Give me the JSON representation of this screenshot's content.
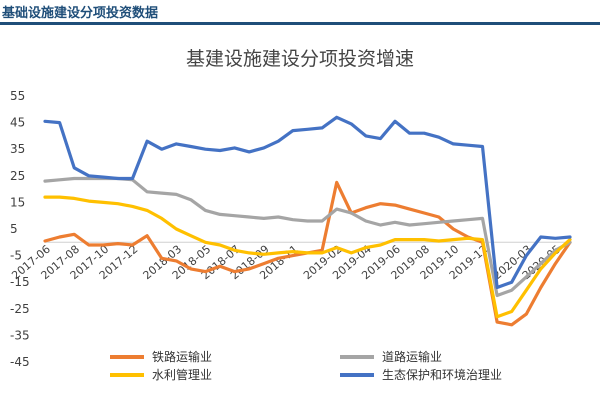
{
  "header": {
    "title": "基础设施建设分项投资数据"
  },
  "colors": {
    "header": "#1f4e79",
    "series": [
      "#ed7d31",
      "#a5a5a5",
      "#ffc000",
      "#4472c4"
    ]
  },
  "chart_data": {
    "type": "line",
    "title": "基建设施建设分项投资增速",
    "xlabel": "",
    "ylabel": "",
    "ylim": [
      -45,
      55
    ],
    "yticks": [
      55,
      45,
      35,
      25,
      15,
      5,
      -5,
      -15,
      -25,
      -35,
      -45
    ],
    "grid": false,
    "legend_position": "bottom",
    "x": [
      "2017-06",
      "2017-07",
      "2017-08",
      "2017-09",
      "2017-10",
      "2017-11",
      "2017-12",
      "2018-01",
      "2018-02",
      "2018-03",
      "2018-04",
      "2018-05",
      "2018-06",
      "2018-07",
      "2018-08",
      "2018-09",
      "2018-10",
      "2018-11",
      "2018-12",
      "2019-01",
      "2019-02",
      "2019-03",
      "2019-04",
      "2019-05",
      "2019-06",
      "2019-07",
      "2019-08",
      "2019-09",
      "2019-10",
      "2019-11",
      "2019-12",
      "2020-01",
      "2020-02",
      "2020-03",
      "2020-04",
      "2020-05",
      "2020-06"
    ],
    "x_tick_labels": [
      "2017-06",
      "2017-08",
      "2017-10",
      "2017-12",
      "2018-03",
      "2018-05",
      "2018-07",
      "2018-09",
      "2018-11",
      "2019-02",
      "2019-04",
      "2019-06",
      "2019-08",
      "2019-10",
      "2019-12",
      "2020-03",
      "2020-05"
    ],
    "series": [
      {
        "name": "铁路运输业",
        "values": [
          0.5,
          2,
          3,
          -1,
          -1,
          -0.5,
          -1,
          2.5,
          -6,
          -7,
          -10,
          -11,
          -9,
          -11,
          -10,
          -8,
          -6,
          -5,
          -4,
          -3,
          22.5,
          11,
          13,
          14.5,
          14,
          12.5,
          11,
          9.5,
          5,
          2,
          0,
          -30,
          -31,
          -27,
          -17,
          -8,
          0
        ]
      },
      {
        "name": "道路运输业",
        "values": [
          23,
          23.5,
          24,
          24,
          24,
          24,
          23.5,
          19,
          18.5,
          18,
          16,
          12,
          10.5,
          10,
          9.5,
          9,
          9.5,
          8.5,
          8,
          8,
          12.5,
          11,
          8,
          6.5,
          7.5,
          6.5,
          7,
          7.5,
          8,
          8.5,
          9,
          -20,
          -18,
          -13,
          -8,
          -3,
          0
        ]
      },
      {
        "name": "水利管理业",
        "values": [
          17,
          17,
          16.5,
          15.5,
          15,
          14.5,
          13.5,
          12,
          9,
          5,
          2.5,
          0,
          -1,
          -3,
          -4,
          -4.5,
          -4,
          -3.5,
          -4,
          -4,
          -2,
          -4,
          -2,
          -1,
          1,
          1,
          1,
          0.5,
          1,
          1.5,
          1,
          -28,
          -26,
          -18,
          -10,
          -4,
          1
        ]
      },
      {
        "name": "生态保护和环境治理业",
        "values": [
          45.5,
          45,
          28,
          25,
          24.5,
          24,
          24,
          38,
          35,
          37,
          36,
          35,
          34.5,
          35.5,
          34,
          35.5,
          38,
          42,
          42.5,
          43,
          47,
          44.5,
          40,
          39,
          45.5,
          41,
          41,
          39.5,
          37,
          36.5,
          36,
          -17,
          -15,
          -5,
          2,
          1.5,
          2
        ]
      }
    ]
  }
}
